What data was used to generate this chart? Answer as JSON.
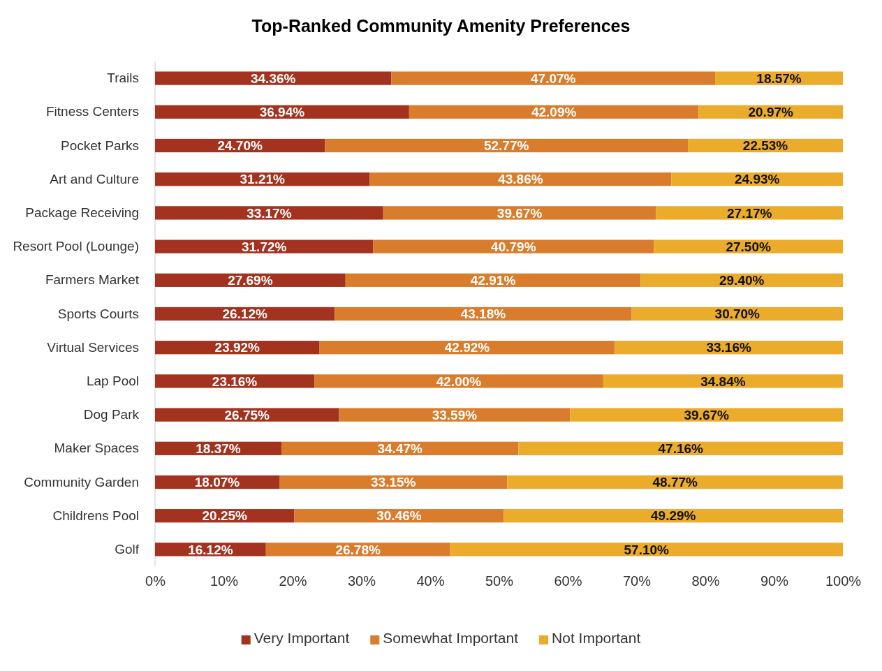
{
  "chart_data": {
    "type": "bar",
    "orientation": "horizontal",
    "stacked": true,
    "title": "Top-Ranked Community Amenity Preferences",
    "categories": [
      "Trails",
      "Fitness Centers",
      "Pocket Parks",
      "Art and Culture",
      "Package Receiving",
      "Resort Pool (Lounge)",
      "Farmers Market",
      "Sports Courts",
      "Virtual Services",
      "Lap Pool",
      "Dog Park",
      "Maker Spaces",
      "Community Garden",
      "Childrens Pool",
      "Golf"
    ],
    "series": [
      {
        "name": "Very Important",
        "color": "#a3321f",
        "values": [
          34.36,
          36.94,
          24.7,
          31.21,
          33.17,
          31.72,
          27.69,
          26.12,
          23.92,
          23.16,
          26.75,
          18.37,
          18.07,
          20.25,
          16.12
        ],
        "value_labels": [
          "34.36%",
          "36.94%",
          "24.70%",
          "31.21%",
          "33.17%",
          "31.72%",
          "27.69%",
          "26.12%",
          "23.92%",
          "23.16%",
          "26.75%",
          "18.37%",
          "18.07%",
          "20.25%",
          "16.12%"
        ]
      },
      {
        "name": "Somewhat Important",
        "color": "#d97c2b",
        "values": [
          47.07,
          42.09,
          52.77,
          43.86,
          39.67,
          40.79,
          42.91,
          43.18,
          42.92,
          42.0,
          33.59,
          34.47,
          33.15,
          30.46,
          26.78
        ],
        "value_labels": [
          "47.07%",
          "42.09%",
          "52.77%",
          "43.86%",
          "39.67%",
          "40.79%",
          "42.91%",
          "43.18%",
          "42.92%",
          "42.00%",
          "33.59%",
          "34.47%",
          "33.15%",
          "30.46%",
          "26.78%"
        ]
      },
      {
        "name": "Not Important",
        "color": "#ebab2b",
        "values": [
          18.57,
          20.97,
          22.53,
          24.93,
          27.17,
          27.5,
          29.4,
          30.7,
          33.16,
          34.84,
          39.67,
          47.16,
          48.77,
          49.29,
          57.1
        ],
        "value_labels": [
          "18.57%",
          "20.97%",
          "22.53%",
          "24.93%",
          "27.17%",
          "27.50%",
          "29.40%",
          "30.70%",
          "33.16%",
          "34.84%",
          "39.67%",
          "47.16%",
          "48.77%",
          "49.29%",
          "57.10%"
        ]
      }
    ],
    "xlim": [
      0,
      100
    ],
    "xticks": [
      {
        "value": 0,
        "label": "0%"
      },
      {
        "value": 10,
        "label": "10%"
      },
      {
        "value": 20,
        "label": "20%"
      },
      {
        "value": 30,
        "label": "30%"
      },
      {
        "value": 40,
        "label": "40%"
      },
      {
        "value": 50,
        "label": "50%"
      },
      {
        "value": 60,
        "label": "60%"
      },
      {
        "value": 70,
        "label": "70%"
      },
      {
        "value": 80,
        "label": "80%"
      },
      {
        "value": 90,
        "label": "90%"
      },
      {
        "value": 100,
        "label": "100%"
      }
    ],
    "legend": "bottom"
  }
}
